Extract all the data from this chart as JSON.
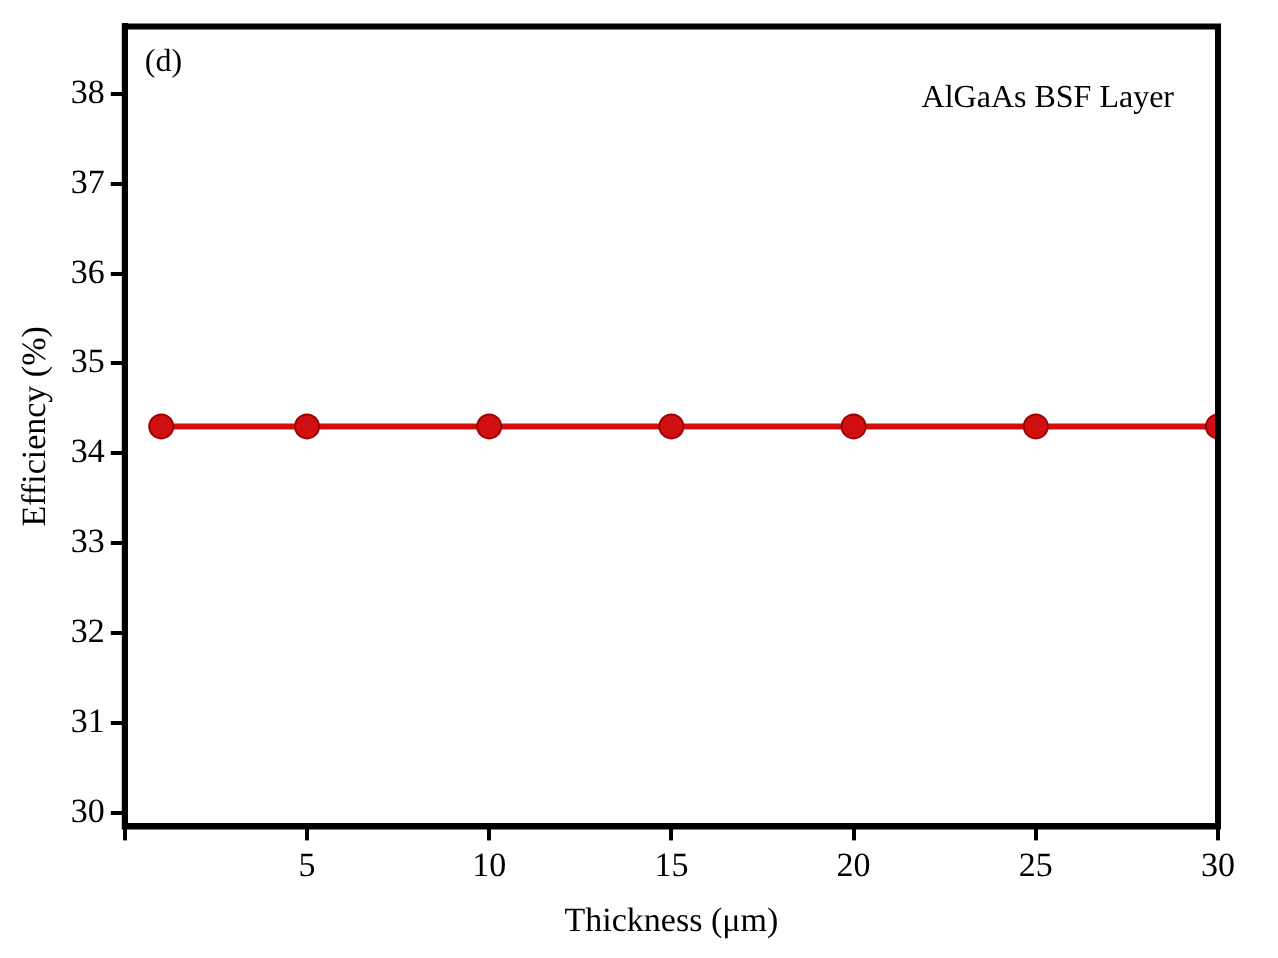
{
  "chart_data": {
    "type": "line",
    "xlabel": "Thickness (μm)",
    "ylabel": "Efficiency (%)",
    "annotations": [
      "(d)",
      "AlGaAs BSF Layer"
    ],
    "x": [
      1,
      5,
      10,
      15,
      20,
      25,
      30
    ],
    "series": [
      {
        "color": "#d01010",
        "values": [
          34.3,
          34.3,
          34.3,
          34.3,
          34.3,
          34.3,
          34.3
        ]
      }
    ],
    "xlim": [
      0,
      30
    ],
    "xticks": [
      {
        "value": 0,
        "label": null
      },
      5,
      10,
      15,
      20,
      25,
      30
    ],
    "ylim": [
      29.85,
      38.75
    ],
    "yticks": [
      30,
      31,
      32,
      33,
      34,
      35,
      36,
      37,
      38
    ],
    "grid": false,
    "legend": false,
    "marker": "circle",
    "line_style": "solid"
  }
}
